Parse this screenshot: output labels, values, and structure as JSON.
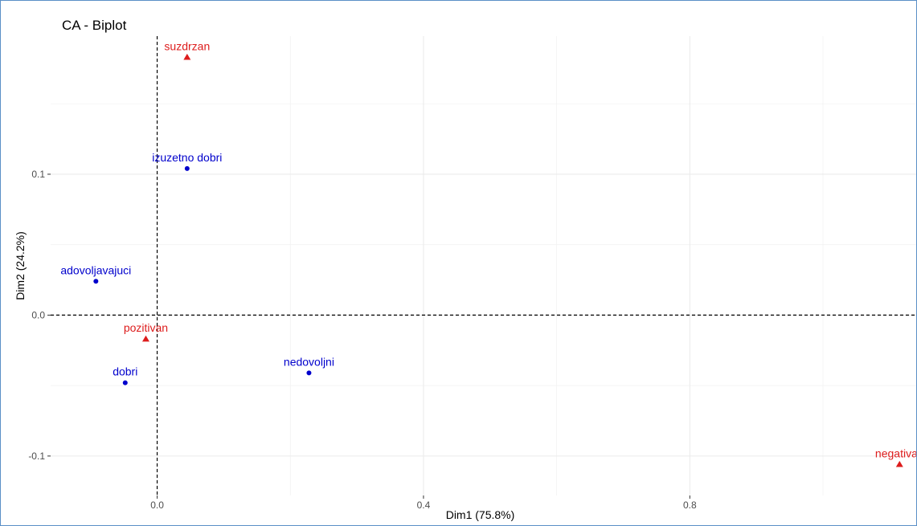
{
  "chart_data": {
    "type": "scatter",
    "title": "CA - Biplot",
    "xlabel": "Dim1 (75.8%)",
    "ylabel": "Dim2 (24.2%)",
    "xlim": [
      -0.16,
      1.14
    ],
    "ylim": [
      -0.128,
      0.198
    ],
    "x_ticks": [
      0.0,
      0.4,
      0.8
    ],
    "x_tick_labels": [
      "0.0",
      "0.4",
      "0.8"
    ],
    "y_ticks": [
      -0.1,
      0.0,
      0.1
    ],
    "y_tick_labels": [
      "-0.1",
      "0.0",
      "0.1"
    ],
    "grid": true,
    "reference_lines": {
      "x": 0,
      "y": 0,
      "style": "dashed"
    },
    "series": [
      {
        "marker": "circle",
        "color": "#0000cc",
        "points": [
          {
            "label": "izuzetno dobri",
            "x": 0.045,
            "y": 0.104
          },
          {
            "label": "adovoljavajuci",
            "x": -0.092,
            "y": 0.024
          },
          {
            "label": "dobri",
            "x": -0.048,
            "y": -0.048
          },
          {
            "label": "nedovoljni",
            "x": 0.228,
            "y": -0.041
          }
        ]
      },
      {
        "marker": "triangle",
        "color": "#dd1c1c",
        "points": [
          {
            "label": "suzdrzan",
            "x": 0.045,
            "y": 0.183
          },
          {
            "label": "pozitivan",
            "x": -0.017,
            "y": -0.017
          },
          {
            "label": "negativan",
            "x": 1.115,
            "y": -0.106
          }
        ]
      }
    ]
  }
}
